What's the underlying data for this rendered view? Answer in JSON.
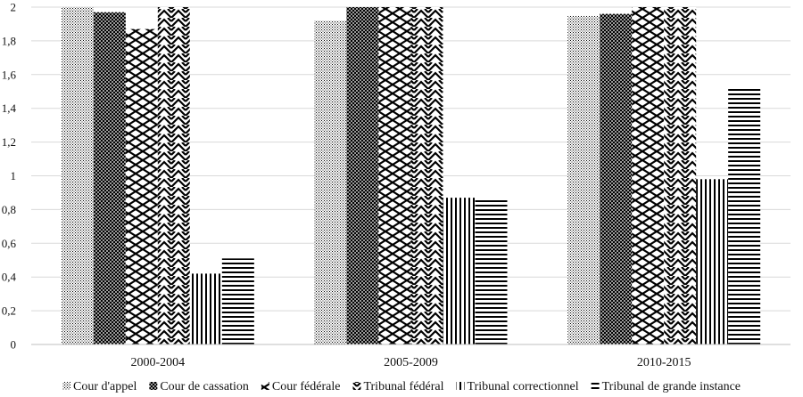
{
  "chart_data": {
    "type": "bar",
    "title": "",
    "xlabel": "",
    "ylabel": "",
    "categories": [
      "2000-2004",
      "2005-2009",
      "2010-2015"
    ],
    "ylim": [
      0,
      2
    ],
    "yticks": [
      "0",
      "0,2",
      "0,4",
      "0,6",
      "0,8",
      "1",
      "1,2",
      "1,4",
      "1,6",
      "1,8",
      "2"
    ],
    "grid": true,
    "legend_position": "bottom",
    "series": [
      {
        "name": "Cour d'appel",
        "pattern": "dots",
        "values": [
          2.0,
          1.92,
          1.95
        ]
      },
      {
        "name": "Cour de cassation",
        "pattern": "crosshatch",
        "values": [
          1.97,
          2.0,
          1.96
        ]
      },
      {
        "name": "Cour fédérale",
        "pattern": "diag-down",
        "values": [
          1.87,
          2.0,
          2.0
        ]
      },
      {
        "name": "Tribunal fédéral",
        "pattern": "diag-up",
        "values": [
          2.0,
          2.0,
          2.0
        ]
      },
      {
        "name": "Tribunal correctionnel",
        "pattern": "vertical",
        "values": [
          0.42,
          0.87,
          0.98
        ]
      },
      {
        "name": "Tribunal de grande instance",
        "pattern": "horizontal",
        "values": [
          0.51,
          0.86,
          1.53
        ]
      }
    ],
    "colors": {
      "grid": "#d9d9d9",
      "axis": "#bfbfbf",
      "ink": "#000000"
    }
  }
}
